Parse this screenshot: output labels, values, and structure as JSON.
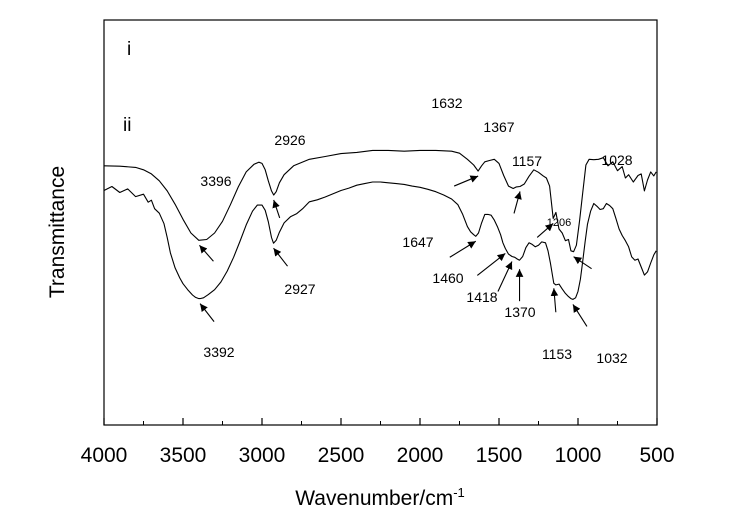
{
  "chart_data": {
    "type": "line",
    "xlabel": "Wavenumber/cm",
    "xlabel_sup": "-1",
    "ylabel": "Transmittance",
    "xlim": [
      4000,
      500
    ],
    "x_reversed": true,
    "x_ticks": [
      "4000",
      "3500",
      "3000",
      "2500",
      "2000",
      "1500",
      "1000",
      "500"
    ],
    "y_ticks_shown": false,
    "grid": false,
    "series": [
      {
        "name": "i",
        "x": [
          4000,
          3900,
          3800,
          3750,
          3700,
          3650,
          3600,
          3550,
          3500,
          3450,
          3400,
          3350,
          3300,
          3250,
          3200,
          3150,
          3100,
          3050,
          3020,
          3000,
          2980,
          2960,
          2940,
          2926,
          2910,
          2890,
          2860,
          2800,
          2700,
          2600,
          2500,
          2400,
          2300,
          2200,
          2100,
          2000,
          1900,
          1800,
          1750,
          1700,
          1660,
          1632,
          1610,
          1590,
          1560,
          1530,
          1500,
          1470,
          1440,
          1410,
          1390,
          1367,
          1340,
          1310,
          1280,
          1250,
          1220,
          1200,
          1180,
          1157,
          1140,
          1120,
          1100,
          1080,
          1060,
          1045,
          1028,
          1010,
          990,
          970,
          950,
          930,
          900,
          870,
          840,
          810,
          780,
          750,
          720,
          700,
          680,
          650,
          620,
          600,
          580,
          560,
          540,
          520,
          505
        ],
        "y": [
          34.0,
          33.9,
          33.6,
          33.0,
          32.0,
          30.3,
          27.8,
          24.5,
          20.8,
          17.4,
          15.6,
          15.8,
          17.4,
          20.3,
          24.4,
          28.8,
          32.5,
          34.4,
          34.9,
          34.6,
          33.0,
          30.3,
          27.8,
          26.8,
          27.6,
          29.8,
          31.8,
          34.0,
          35.6,
          36.3,
          37.0,
          37.3,
          37.8,
          37.8,
          37.6,
          37.8,
          37.8,
          37.6,
          37.1,
          35.6,
          34.2,
          32.7,
          34.0,
          35.0,
          35.3,
          35.6,
          34.6,
          31.6,
          29.0,
          28.4,
          28.8,
          28.9,
          29.5,
          31.4,
          33.0,
          32.4,
          31.5,
          31.0,
          29.0,
          21.0,
          22.5,
          18.4,
          17.4,
          15.5,
          15.8,
          13.0,
          12.8,
          14.4,
          20.5,
          27.3,
          34.2,
          35.6,
          35.5,
          35.6,
          36.0,
          34.0,
          35.0,
          32.8,
          33.8,
          31.0,
          31.8,
          30.0,
          31.6,
          32.0,
          27.8,
          30.5,
          32.5,
          31.5,
          32.5
        ]
      },
      {
        "name": "ii",
        "x": [
          4000,
          3950,
          3900,
          3850,
          3800,
          3750,
          3720,
          3700,
          3680,
          3650,
          3620,
          3600,
          3580,
          3550,
          3520,
          3500,
          3470,
          3440,
          3420,
          3400,
          3392,
          3370,
          3340,
          3300,
          3260,
          3220,
          3180,
          3140,
          3100,
          3060,
          3030,
          3000,
          2980,
          2960,
          2940,
          2927,
          2910,
          2890,
          2860,
          2820,
          2780,
          2740,
          2700,
          2650,
          2600,
          2550,
          2500,
          2450,
          2400,
          2350,
          2300,
          2250,
          2200,
          2150,
          2100,
          2050,
          2000,
          1950,
          1900,
          1850,
          1800,
          1760,
          1730,
          1700,
          1680,
          1660,
          1647,
          1630,
          1610,
          1590,
          1570,
          1550,
          1530,
          1510,
          1490,
          1475,
          1460,
          1440,
          1418,
          1400,
          1385,
          1370,
          1350,
          1330,
          1310,
          1290,
          1270,
          1250,
          1230,
          1206,
          1190,
          1175,
          1160,
          1153,
          1140,
          1120,
          1100,
          1080,
          1060,
          1045,
          1032,
          1015,
          1000,
          985,
          970,
          955,
          940,
          920,
          900,
          880,
          860,
          840,
          820,
          800,
          780,
          760,
          740,
          720,
          700,
          680,
          660,
          640,
          620,
          600,
          580,
          560,
          540,
          520,
          505
        ],
        "y": [
          28.5,
          28.3,
          28.0,
          27.7,
          27.0,
          26.4,
          25.6,
          24.9,
          24.0,
          22.3,
          19.7,
          16.3,
          12.5,
          8.8,
          6.3,
          4.9,
          3.4,
          2.1,
          1.5,
          1.2,
          1.2,
          1.4,
          2.2,
          3.4,
          5.3,
          8.0,
          11.4,
          15.3,
          19.4,
          22.8,
          24.3,
          24.3,
          23.0,
          20.2,
          16.3,
          14.9,
          15.6,
          17.6,
          19.9,
          21.4,
          22.2,
          23.5,
          25.1,
          25.6,
          26.3,
          27.1,
          27.9,
          28.5,
          29.2,
          29.6,
          30.0,
          30.0,
          29.8,
          29.6,
          29.4,
          29.0,
          28.7,
          28.2,
          27.6,
          26.8,
          25.8,
          24.4,
          22.0,
          19.0,
          17.7,
          17.0,
          16.6,
          17.4,
          19.9,
          22.0,
          22.0,
          21.8,
          20.6,
          19.0,
          17.0,
          15.0,
          13.6,
          12.2,
          11.6,
          11.4,
          11.0,
          10.7,
          11.6,
          13.8,
          15.0,
          14.6,
          14.0,
          14.4,
          15.2,
          15.0,
          13.0,
          10.0,
          6.6,
          5.0,
          4.6,
          4.8,
          3.6,
          2.5,
          1.7,
          1.2,
          1.0,
          1.4,
          3.0,
          6.0,
          10.4,
          15.2,
          19.6,
          22.8,
          24.7,
          24.0,
          23.2,
          23.4,
          24.7,
          24.2,
          23.4,
          21.0,
          18.4,
          16.8,
          15.5,
          14.0,
          11.5,
          10.7,
          11.0,
          9.0,
          7.0,
          7.8,
          10.0,
          12.0,
          13.0
        ]
      }
    ],
    "annotations": [
      {
        "text": "3396",
        "series": "i",
        "x": 3396
      },
      {
        "text": "2926",
        "series": "i",
        "x": 2926
      },
      {
        "text": "1632",
        "series": "i",
        "x": 1632
      },
      {
        "text": "1367",
        "series": "i",
        "x": 1367
      },
      {
        "text": "1157",
        "series": "i",
        "x": 1157
      },
      {
        "text": "1028",
        "series": "i",
        "x": 1028
      },
      {
        "text": "3392",
        "series": "ii",
        "x": 3392
      },
      {
        "text": "2927",
        "series": "ii",
        "x": 2927
      },
      {
        "text": "1647",
        "series": "ii",
        "x": 1647
      },
      {
        "text": "1460",
        "series": "ii",
        "x": 1460
      },
      {
        "text": "1418",
        "series": "ii",
        "x": 1418
      },
      {
        "text": "1370",
        "series": "ii",
        "x": 1370
      },
      {
        "text": "1206",
        "series": "ii",
        "x": 1206
      },
      {
        "text": "1153",
        "series": "ii",
        "x": 1153
      },
      {
        "text": "1032",
        "series": "ii",
        "x": 1032
      }
    ]
  }
}
